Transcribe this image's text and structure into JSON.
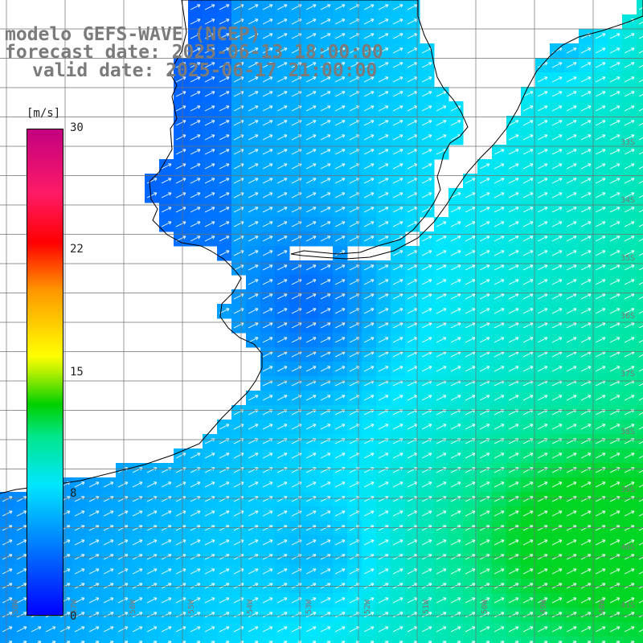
{
  "title": {
    "model": "modelo GEFS-WAVE (NCEP)",
    "forecast": "forecast date: 2025-06-13 18:00:00",
    "valid": "valid date: 2025-06-17 21:00:00"
  },
  "colorbar": {
    "unit": "[m/s]",
    "ticks": [
      "30",
      "22",
      "15",
      "8",
      "0"
    ],
    "tick_values": [
      30,
      22,
      15,
      8,
      0
    ],
    "min": 0,
    "max": 30,
    "stops": [
      {
        "v": 0,
        "color": "#0000ff"
      },
      {
        "v": 4,
        "color": "#0073ff"
      },
      {
        "v": 8,
        "color": "#00e6ff"
      },
      {
        "v": 11,
        "color": "#00e68c"
      },
      {
        "v": 13,
        "color": "#00d000"
      },
      {
        "v": 15,
        "color": "#b4f000"
      },
      {
        "v": 16,
        "color": "#ffff00"
      },
      {
        "v": 20,
        "color": "#ff9900"
      },
      {
        "v": 23,
        "color": "#ff0000"
      },
      {
        "v": 26,
        "color": "#ff1a66"
      },
      {
        "v": 30,
        "color": "#c20080"
      }
    ]
  },
  "map": {
    "latitude_labels": [
      "33S",
      "34S",
      "35S",
      "36S",
      "37S",
      "38S",
      "39S",
      "40S",
      "41S"
    ],
    "longitude_labels": [
      "58W",
      "57W",
      "56W",
      "55W",
      "54W",
      "53W",
      "52W",
      "51W",
      "50W",
      "49W",
      "48W"
    ],
    "field": "wind speed with direction arrows",
    "wind_direction": "from south-west (arrows point north-east)",
    "speed_range_shown": [
      3,
      12
    ],
    "colors": {
      "land": "#ffffff",
      "coast": "#000000",
      "grid": "#707070",
      "arrow": "#ffffff"
    }
  }
}
